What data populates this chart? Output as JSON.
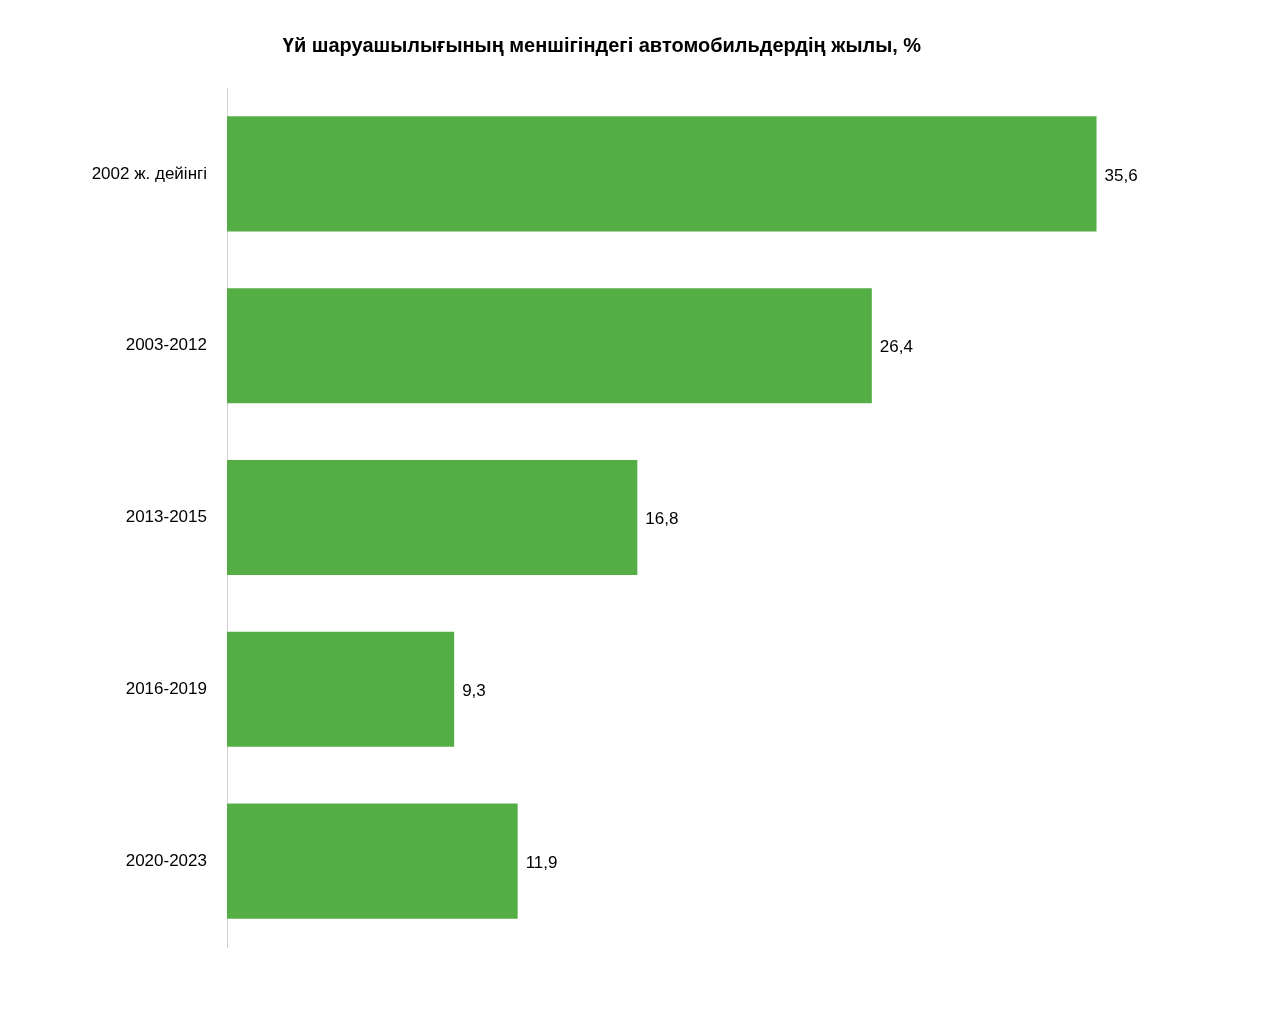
{
  "chart_data": {
    "type": "bar",
    "orientation": "horizontal",
    "title": "Үй шаруашылығының меншігіндегі автомобильдердің жылы, %",
    "categories": [
      "2002 ж. дейінгі",
      "2003-2012",
      "2013-2015",
      "2016-2019",
      "2020-2023"
    ],
    "values": [
      35.6,
      26.4,
      16.8,
      9.3,
      11.9
    ],
    "value_labels": [
      "35,6",
      "26,4",
      "16,8",
      "9,3",
      "11,9"
    ],
    "color": "#55ae45",
    "tick_labels": "y"
  }
}
